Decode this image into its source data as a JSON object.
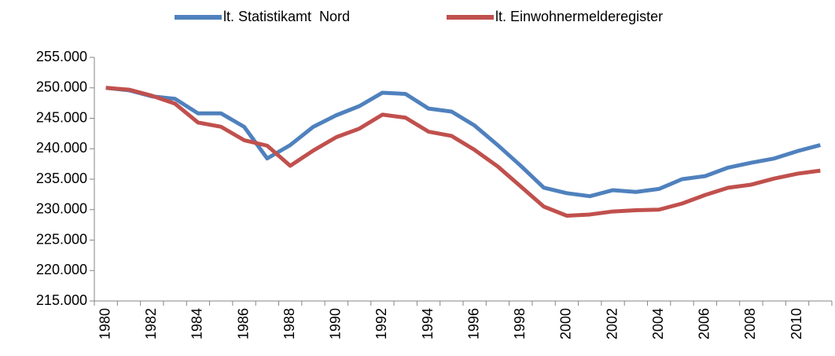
{
  "chart_data": {
    "type": "line",
    "categories": [
      "1980",
      null,
      "1982",
      null,
      "1984",
      null,
      "1986",
      null,
      "1988",
      null,
      "1990",
      null,
      "1992",
      null,
      "1994",
      null,
      "1996",
      null,
      "1998",
      null,
      "2000",
      null,
      "2002",
      null,
      "2004",
      null,
      "2006",
      null,
      "2008",
      null,
      "2010",
      null
    ],
    "series": [
      {
        "name": "lt. Statistikamt  Nord",
        "color": "#4f81bd",
        "values": [
          250000,
          249600,
          248600,
          248200,
          245800,
          245800,
          243600,
          238400,
          240600,
          243600,
          245500,
          247000,
          249200,
          249000,
          246600,
          246100,
          243800,
          240600,
          237200,
          233600,
          232700,
          232200,
          233200,
          232900,
          233400,
          235000,
          235500,
          236900,
          237700,
          238400,
          239600,
          240600
        ]
      },
      {
        "name": "lt. Einwohnermelderegister",
        "color": "#c0504d",
        "values": [
          250000,
          249700,
          248700,
          247400,
          244300,
          243600,
          241400,
          240500,
          237200,
          239700,
          241900,
          243300,
          245600,
          245100,
          242800,
          242100,
          239800,
          237100,
          233800,
          230500,
          229000,
          229200,
          229700,
          229900,
          230000,
          231000,
          232400,
          233600,
          234100,
          235100,
          235900,
          236400
        ]
      }
    ],
    "ylim": [
      215000,
      255000
    ],
    "yticks": [
      {
        "value": 215000,
        "label": "215.000"
      },
      {
        "value": 220000,
        "label": "220.000"
      },
      {
        "value": 225000,
        "label": "225.000"
      },
      {
        "value": 230000,
        "label": "230.000"
      },
      {
        "value": 235000,
        "label": "235.000"
      },
      {
        "value": 240000,
        "label": "240.000"
      },
      {
        "value": 245000,
        "label": "245.000"
      },
      {
        "value": 250000,
        "label": "250.000"
      },
      {
        "value": 255000,
        "label": "255.000"
      }
    ],
    "grid": false,
    "legend": "top"
  }
}
